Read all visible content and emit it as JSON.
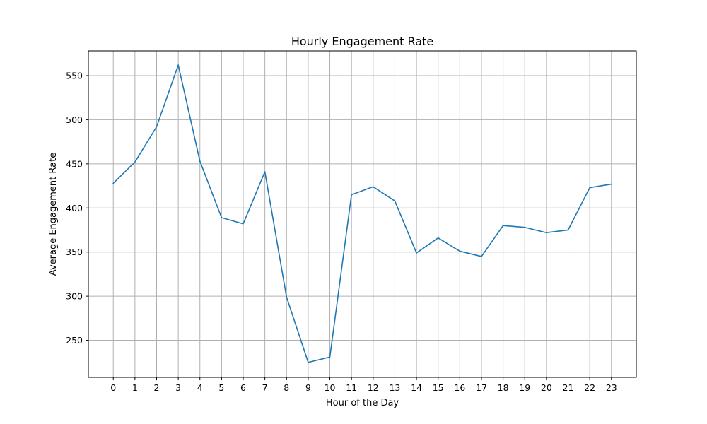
{
  "chart_data": {
    "type": "line",
    "title": "Hourly Engagement Rate",
    "xlabel": "Hour of the Day",
    "ylabel": "Average Engagement Rate",
    "x": [
      0,
      1,
      2,
      3,
      4,
      5,
      6,
      7,
      8,
      9,
      10,
      11,
      12,
      13,
      14,
      15,
      16,
      17,
      18,
      19,
      20,
      21,
      22,
      23
    ],
    "x_tick_labels": [
      "0",
      "1",
      "2",
      "3",
      "4",
      "5",
      "6",
      "7",
      "8",
      "9",
      "10",
      "11",
      "12",
      "13",
      "14",
      "15",
      "16",
      "17",
      "18",
      "19",
      "20",
      "21",
      "22",
      "23"
    ],
    "series": [
      {
        "values": [
          428,
          452,
          492,
          562,
          453,
          389,
          382,
          441,
          299,
          225,
          231,
          415,
          424,
          408,
          349,
          366,
          351,
          345,
          380,
          378,
          372,
          375,
          423,
          427
        ],
        "color": "#1f77b4"
      }
    ],
    "xlim": [
      -1.15,
      24.15
    ],
    "ylim": [
      208,
      578
    ],
    "y_ticks": [
      250,
      300,
      350,
      400,
      450,
      500,
      550
    ],
    "y_tick_labels": [
      "250",
      "300",
      "350",
      "400",
      "450",
      "500",
      "550"
    ],
    "grid": true
  }
}
